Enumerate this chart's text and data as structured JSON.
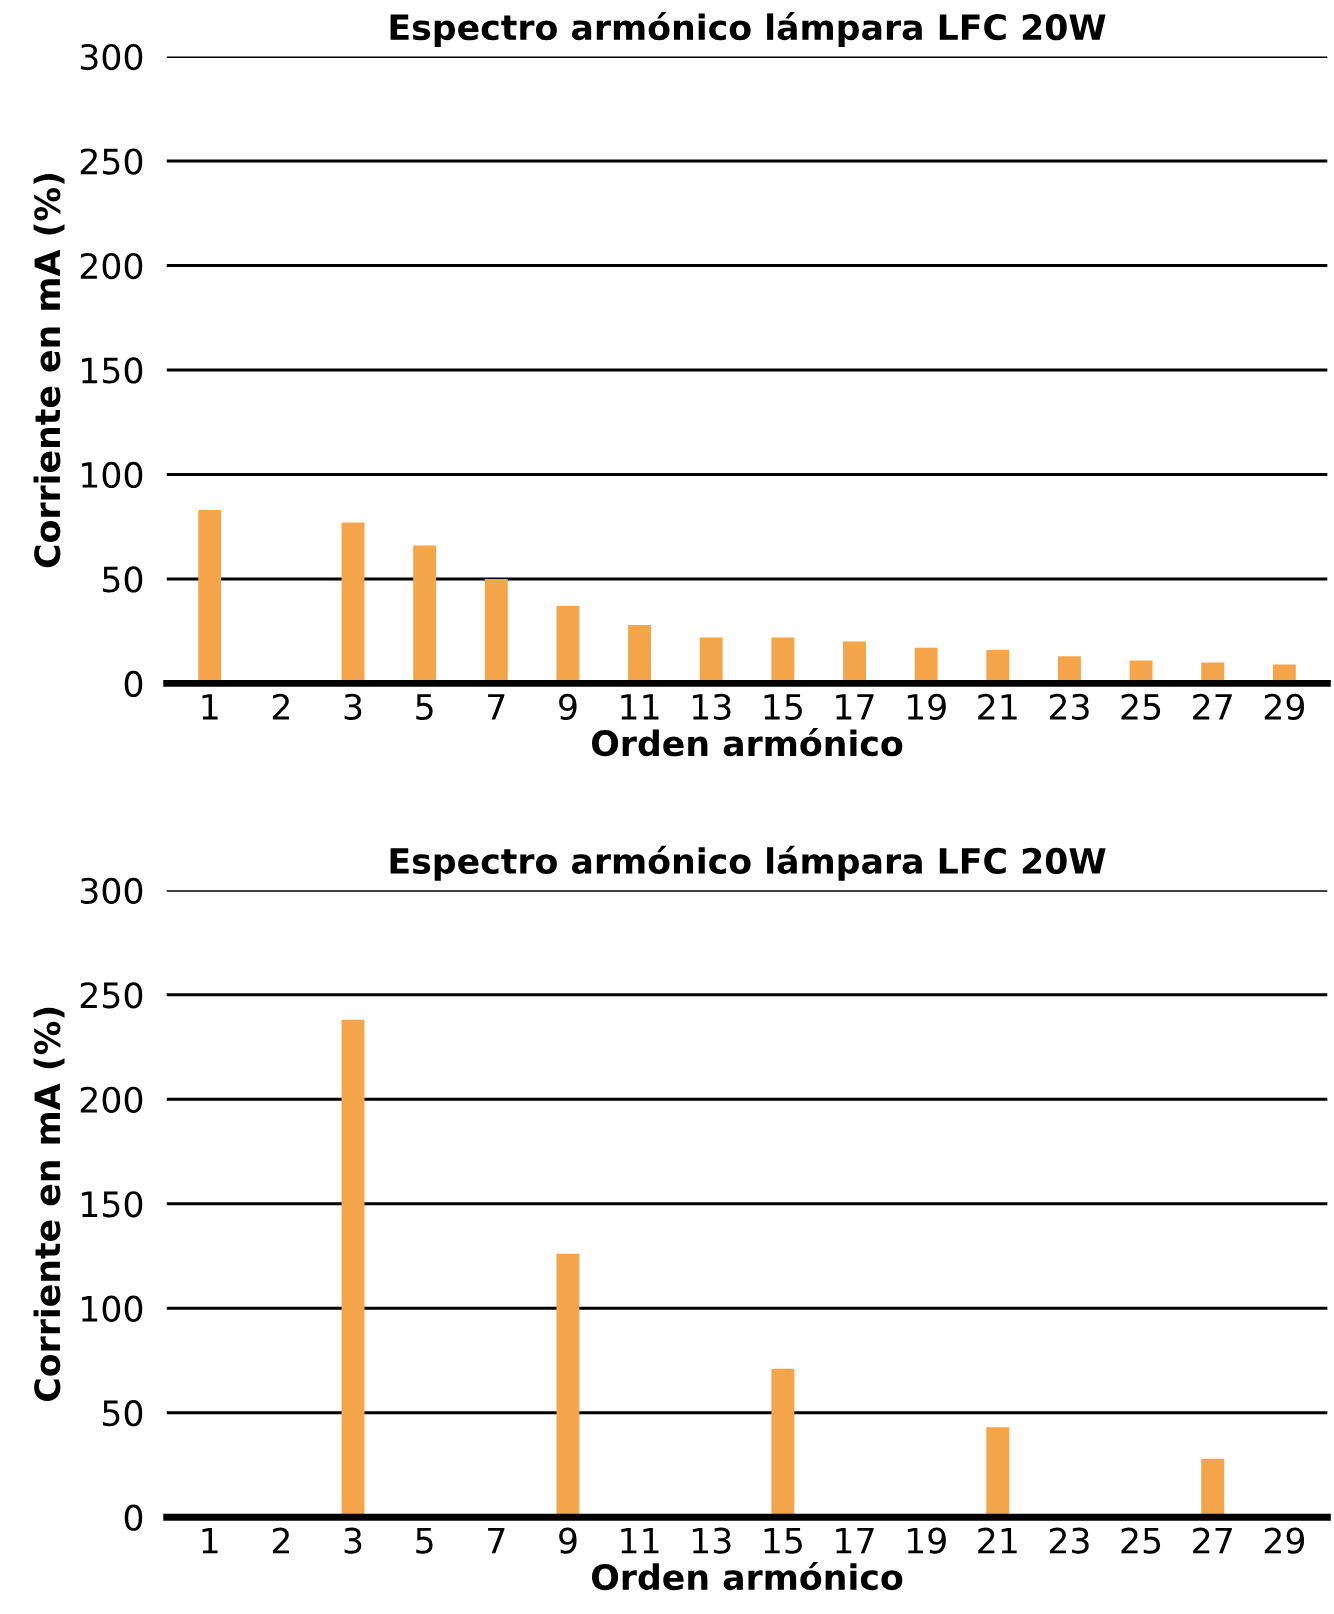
{
  "chart_data": [
    {
      "type": "bar",
      "title": "Espectro armónico lámpara LFC 20W",
      "xlabel": "Orden armónico",
      "ylabel": "Corriente en mA (%)",
      "categories": [
        "1",
        "2",
        "3",
        "5",
        "7",
        "9",
        "11",
        "13",
        "15",
        "17",
        "19",
        "21",
        "23",
        "25",
        "27",
        "29"
      ],
      "series": [
        {
          "color": "#f4a54a",
          "values": [
            83,
            0,
            77,
            66,
            50,
            37,
            28,
            22,
            22,
            20,
            17,
            16,
            13,
            11,
            10,
            9
          ]
        }
      ],
      "ylim": [
        0,
        300
      ],
      "yticks": [
        0,
        50,
        100,
        150,
        200,
        250,
        300
      ],
      "grid": "y"
    },
    {
      "type": "bar",
      "title": "Espectro armónico lámpara LFC 20W",
      "xlabel": "Orden armónico",
      "ylabel": "Corriente en mA (%)",
      "categories": [
        "1",
        "2",
        "3",
        "5",
        "7",
        "9",
        "11",
        "13",
        "15",
        "17",
        "19",
        "21",
        "23",
        "25",
        "27",
        "29"
      ],
      "series": [
        {
          "color": "#f4a54a",
          "values": [
            0,
            0,
            238,
            0,
            0,
            126,
            0,
            0,
            71,
            0,
            0,
            43,
            0,
            0,
            28,
            0
          ]
        }
      ],
      "ylim": [
        0,
        300
      ],
      "yticks": [
        0,
        50,
        100,
        150,
        200,
        250,
        300
      ],
      "grid": "y"
    }
  ]
}
